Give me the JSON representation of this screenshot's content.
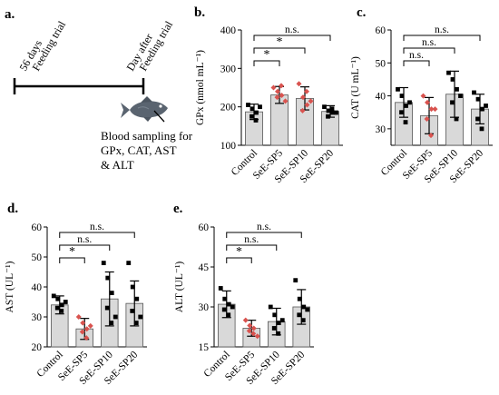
{
  "panels": [
    {
      "id": "a",
      "letter": "a."
    },
    {
      "id": "b",
      "letter": "b."
    },
    {
      "id": "c",
      "letter": "c."
    },
    {
      "id": "d",
      "letter": "d."
    },
    {
      "id": "e",
      "letter": "e."
    }
  ],
  "schematic": {
    "start_label_line1": "56 days",
    "start_label_line2": "Feeding trial",
    "end_label_line1": "Day after",
    "end_label_line2": "Feeding trial",
    "sampling_lines": [
      "Blood sampling for",
      "GPx, CAT, AST",
      "& ALT"
    ]
  },
  "colors": {
    "bar_fill": "#d9d9d9",
    "control_points": "#000000",
    "treatment_points": "#d9534f",
    "error_bar": "#000000"
  },
  "chart_data": [
    {
      "id": "b",
      "type": "bar",
      "categories": [
        "Control",
        "SeE-SP5",
        "SeE-SP10",
        "SeE-SP20"
      ],
      "values": [
        187,
        231,
        222,
        188
      ],
      "errors": [
        20,
        22,
        30,
        15
      ],
      "points": [
        [
          205,
          195,
          185,
          175,
          165,
          200
        ],
        [
          250,
          240,
          230,
          225,
          255,
          215
        ],
        [
          260,
          225,
          205,
          190,
          240,
          215
        ],
        [
          200,
          190,
          185,
          175,
          195,
          185
        ]
      ],
      "point_colors": [
        "black",
        "red",
        "red",
        "black"
      ],
      "ylabel": "GPx (nmol mL⁻¹)",
      "ylim": [
        100,
        400
      ],
      "ticks": [
        100,
        200,
        300,
        400
      ],
      "sig": [
        {
          "from": 0,
          "to": 1,
          "label": "*"
        },
        {
          "from": 0,
          "to": 2,
          "label": "*"
        },
        {
          "from": 0,
          "to": 3,
          "label": "n.s."
        }
      ]
    },
    {
      "id": "c",
      "type": "bar",
      "categories": [
        "Control",
        "SeE-SP5",
        "SeE-SP10",
        "SeE-SP20"
      ],
      "values": [
        38,
        34,
        40.5,
        36
      ],
      "errors": [
        4.5,
        5.5,
        7,
        4.5
      ],
      "points": [
        [
          42,
          40,
          37,
          35,
          32,
          38
        ],
        [
          40,
          38,
          36,
          33,
          28,
          36
        ],
        [
          47,
          45,
          42,
          38,
          33,
          40
        ],
        [
          41,
          39,
          36,
          33,
          30,
          37
        ]
      ],
      "point_colors": [
        "black",
        "red",
        "black",
        "black"
      ],
      "ylabel": "CAT (U mL⁻¹)",
      "ylim": [
        25,
        60
      ],
      "ticks": [
        30,
        40,
        50,
        60
      ],
      "sig": [
        {
          "from": 0,
          "to": 1,
          "label": "n.s."
        },
        {
          "from": 0,
          "to": 2,
          "label": "n.s."
        },
        {
          "from": 0,
          "to": 3,
          "label": "n.s."
        }
      ]
    },
    {
      "id": "d",
      "type": "bar",
      "categories": [
        "Control",
        "SeE-SP5",
        "SeE-SP10",
        "SeE-SP20"
      ],
      "values": [
        34,
        26,
        36,
        34.5
      ],
      "errors": [
        3,
        3.5,
        9,
        7.5
      ],
      "points": [
        [
          37,
          36,
          34,
          33,
          32,
          35
        ],
        [
          30,
          28,
          26,
          25,
          23,
          27
        ],
        [
          48,
          43,
          38,
          33,
          28,
          30
        ],
        [
          48,
          40,
          36,
          32,
          28,
          30
        ]
      ],
      "point_colors": [
        "black",
        "red",
        "black",
        "black"
      ],
      "ylabel": "AST (UL⁻¹)",
      "ylim": [
        20,
        60
      ],
      "ticks": [
        20,
        30,
        40,
        50,
        60
      ],
      "sig": [
        {
          "from": 0,
          "to": 1,
          "label": "*"
        },
        {
          "from": 0,
          "to": 2,
          "label": "n.s."
        },
        {
          "from": 0,
          "to": 3,
          "label": "n.s."
        }
      ]
    },
    {
      "id": "e",
      "type": "bar",
      "categories": [
        "Control",
        "SeE-SP5",
        "SeE-SP10",
        "SeE-SP20"
      ],
      "values": [
        31,
        22,
        24.5,
        30
      ],
      "errors": [
        5,
        3,
        5,
        6.5
      ],
      "points": [
        [
          37,
          33,
          31,
          29,
          27,
          30
        ],
        [
          25,
          23,
          22,
          21,
          20,
          19
        ],
        [
          30,
          27,
          24,
          22,
          20,
          25
        ],
        [
          40,
          33,
          30,
          27,
          25,
          29
        ]
      ],
      "point_colors": [
        "black",
        "red",
        "black",
        "black"
      ],
      "ylabel": "ALT (UL⁻¹)",
      "ylim": [
        15,
        60
      ],
      "ticks": [
        15,
        30,
        45,
        60
      ],
      "sig": [
        {
          "from": 0,
          "to": 1,
          "label": "*"
        },
        {
          "from": 0,
          "to": 2,
          "label": "n.s."
        },
        {
          "from": 0,
          "to": 3,
          "label": "n.s."
        }
      ]
    }
  ]
}
